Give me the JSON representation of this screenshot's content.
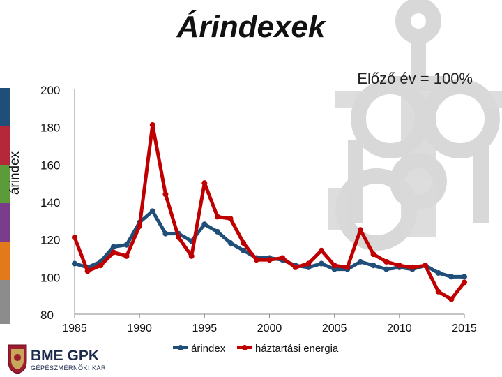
{
  "slide": {
    "title": "Árindexek",
    "subtitle": "Előző év = 100%",
    "logo_text_main": "BME GPK",
    "logo_text_sub": "GÉPÉSZMÉRNÖKI KAR"
  },
  "colors": {
    "series_arindex": "#1f4e79",
    "series_energia": "#c00000",
    "stripe_colors": [
      "#1f4e79",
      "#b5283a",
      "#5b9b3a",
      "#7a3d8c",
      "#e27a1c",
      "#8c8c8c"
    ],
    "emblem": "#cfcfcf"
  },
  "chart_data": {
    "type": "line",
    "title": "",
    "xlabel": "",
    "ylabel": "árindex",
    "xlim": [
      1985,
      2015
    ],
    "ylim": [
      80,
      200
    ],
    "x_ticks": [
      1985,
      1990,
      1995,
      2000,
      2005,
      2010,
      2015
    ],
    "y_ticks": [
      80,
      100,
      120,
      140,
      160,
      180,
      200
    ],
    "grid": false,
    "legend": "bottom",
    "x": [
      1985,
      1986,
      1987,
      1988,
      1989,
      1990,
      1991,
      1992,
      1993,
      1994,
      1995,
      1996,
      1997,
      1998,
      1999,
      2000,
      2001,
      2002,
      2003,
      2004,
      2005,
      2006,
      2007,
      2008,
      2009,
      2010,
      2011,
      2012,
      2013,
      2014,
      2015
    ],
    "series": [
      {
        "name": "árindex",
        "values": [
          107,
          105,
          108,
          116,
          117,
          129,
          135,
          123,
          123,
          119,
          128,
          124,
          118,
          114,
          110,
          110,
          109,
          106,
          105,
          107,
          104,
          104,
          108,
          106,
          104,
          105,
          104,
          106,
          102,
          100,
          100
        ]
      },
      {
        "name": "háztartási energia",
        "values": [
          121,
          103,
          106,
          113,
          111,
          127,
          181,
          144,
          121,
          111,
          150,
          132,
          131,
          118,
          109,
          109,
          110,
          105,
          107,
          114,
          106,
          105,
          125,
          112,
          108,
          106,
          105,
          106,
          92,
          88,
          97
        ]
      }
    ]
  }
}
